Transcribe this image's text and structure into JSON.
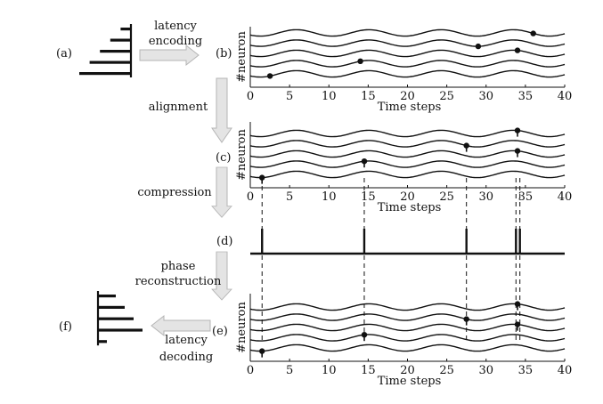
{
  "panels": {
    "a": "(a)",
    "b": "(b)",
    "c": "(c)",
    "d": "(d)",
    "e": "(e)",
    "f": "(f)"
  },
  "steps": {
    "latency_encoding": [
      "latency",
      "encoding"
    ],
    "alignment": "alignment",
    "compression": "compression",
    "phase_reconstruction": [
      "phase",
      "reconstruction"
    ],
    "latency_decoding": [
      "latency",
      "decoding"
    ]
  },
  "axes": {
    "xlabel": "Time steps",
    "ylabel": "#neuron",
    "xticks": [
      0,
      5,
      10,
      15,
      20,
      25,
      30,
      35,
      40
    ]
  },
  "colors": {
    "ink": "#111111",
    "arrow_fill": "#e4e4e4",
    "arrow_stroke": "#b5b5b5"
  },
  "chart_data": [
    {
      "type": "line",
      "panel": "b",
      "xlabel": "Time steps",
      "ylabel": "#neuron",
      "xlim": [
        0,
        40
      ],
      "series": [
        {
          "values": [
            {
              "x": 2.5,
              "y": 1
            }
          ]
        },
        {
          "values": [
            {
              "x": 14,
              "y": 2
            }
          ]
        },
        {
          "values": [
            {
              "x": 34,
              "y": 3
            }
          ]
        },
        {
          "values": [
            {
              "x": 29,
              "y": 4
            }
          ]
        },
        {
          "values": [
            {
              "x": 36,
              "y": 5
            }
          ]
        }
      ]
    },
    {
      "type": "line",
      "panel": "c",
      "xlabel": "Time steps",
      "ylabel": "#neuron",
      "xlim": [
        0,
        40
      ],
      "series": [
        {
          "values": [
            {
              "x": 1.5,
              "y": 1
            }
          ]
        },
        {
          "values": [
            {
              "x": 14.5,
              "y": 2
            }
          ]
        },
        {
          "values": [
            {
              "x": 34,
              "y": 3
            }
          ]
        },
        {
          "values": [
            {
              "x": 27.5,
              "y": 4
            }
          ]
        },
        {
          "values": [
            {
              "x": 34,
              "y": 5
            }
          ]
        }
      ]
    },
    {
      "type": "line",
      "panel": "d",
      "xlim": [
        0,
        40
      ],
      "spikes": [
        1.5,
        14.5,
        27.5,
        33.8,
        34.3
      ]
    },
    {
      "type": "line",
      "panel": "e",
      "xlabel": "Time steps",
      "ylabel": "#neuron",
      "xlim": [
        0,
        40
      ],
      "series": [
        {
          "values": [
            {
              "x": 1.5,
              "y": 1
            }
          ]
        },
        {
          "values": [
            {
              "x": 14.5,
              "y": 2
            }
          ]
        },
        {
          "values": [
            {
              "x": 34,
              "y": 3
            }
          ]
        },
        {
          "values": [
            {
              "x": 27.5,
              "y": 4
            }
          ]
        },
        {
          "values": [
            {
              "x": 34,
              "y": 5
            }
          ]
        }
      ]
    }
  ],
  "latency_bars": {
    "a": [
      1,
      2,
      3,
      4,
      5
    ],
    "f": [
      2,
      3,
      4,
      5,
      1
    ]
  }
}
